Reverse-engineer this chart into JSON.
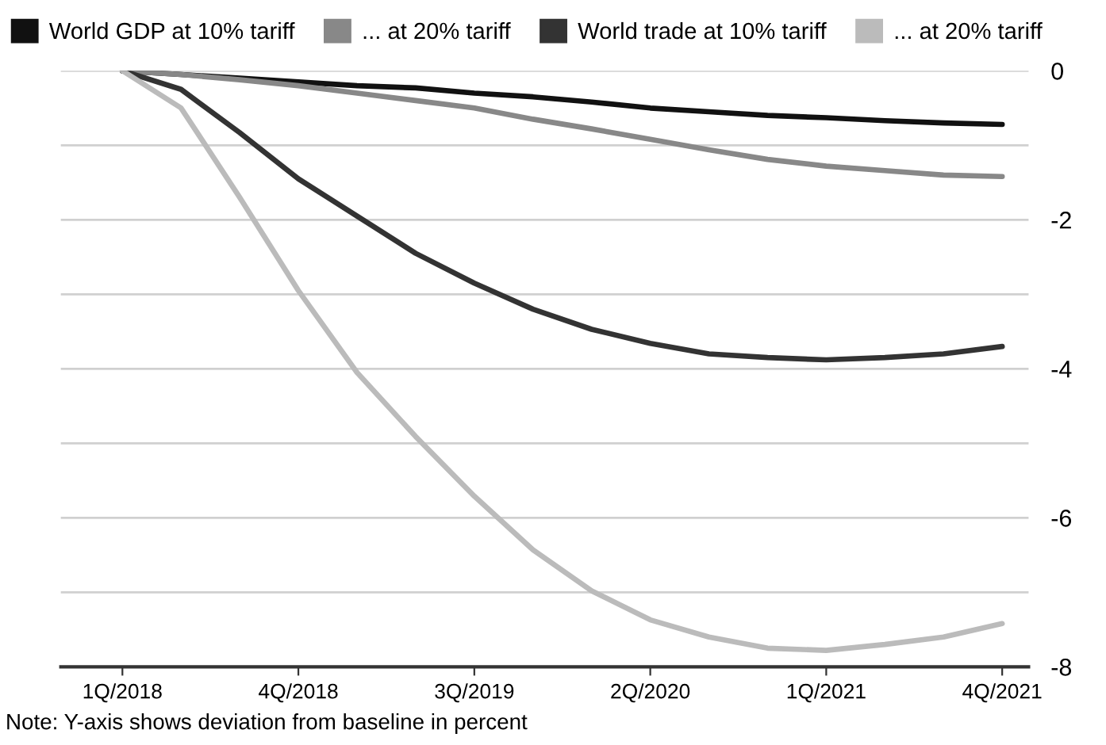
{
  "chart_data": {
    "type": "line",
    "categories": [
      "1Q/2018",
      null,
      null,
      "4Q/2018",
      null,
      null,
      "3Q/2019",
      null,
      null,
      "2Q/2020",
      null,
      null,
      "1Q/2021",
      null,
      null,
      "4Q/2021"
    ],
    "series": [
      {
        "name": "World GDP at 10% tariff",
        "color": "#111111",
        "values": [
          0,
          -0.05,
          -0.1,
          -0.15,
          -0.2,
          -0.23,
          -0.3,
          -0.35,
          -0.42,
          -0.5,
          -0.55,
          -0.6,
          -0.63,
          -0.67,
          -0.7,
          -0.72
        ]
      },
      {
        "name": "... at 20% tariff",
        "color": "#888888",
        "values": [
          0,
          -0.05,
          -0.12,
          -0.2,
          -0.3,
          -0.4,
          -0.5,
          -0.65,
          -0.78,
          -0.92,
          -1.06,
          -1.19,
          -1.28,
          -1.34,
          -1.4,
          -1.42
        ]
      },
      {
        "name": "World trade at 10% tariff",
        "color": "#333333",
        "values": [
          0,
          -0.25,
          -0.83,
          -1.45,
          -1.95,
          -2.45,
          -2.85,
          -3.2,
          -3.47,
          -3.66,
          -3.8,
          -3.85,
          -3.88,
          -3.85,
          -3.8,
          -3.7
        ]
      },
      {
        "name": "... at 20% tariff",
        "color": "#bbbbbb",
        "values": [
          0,
          -0.5,
          -1.7,
          -2.95,
          -4.05,
          -4.91,
          -5.71,
          -6.43,
          -6.98,
          -7.37,
          -7.6,
          -7.75,
          -7.78,
          -7.7,
          -7.6,
          -7.42
        ]
      }
    ],
    "ylim": [
      -8,
      0
    ],
    "yticks": [
      -8,
      {
        "value": -7,
        "label": null
      },
      -6,
      {
        "value": -5,
        "label": null
      },
      -4,
      {
        "value": -3,
        "label": null
      },
      -2,
      {
        "value": -1,
        "label": null
      },
      0
    ],
    "grid": "y",
    "legend": "top left",
    "annotations": [
      "Note: Y-axis shows deviation from baseline in percent"
    ]
  }
}
